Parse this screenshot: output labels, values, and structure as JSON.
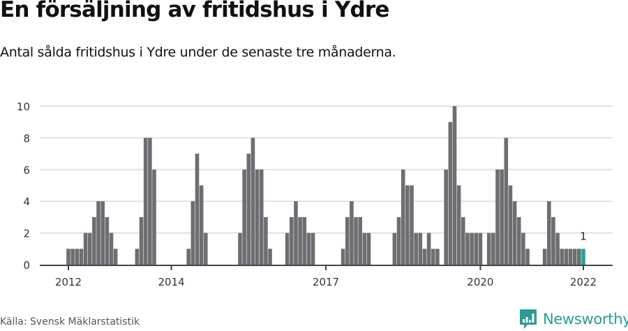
{
  "header": {
    "title": "En försäljning av fritidshus i Ydre",
    "subtitle": "Antal sålda fritidshus i Ydre under de senaste tre månaderna."
  },
  "footer": {
    "source": "Källa: Svensk Mäklarstatistik",
    "brand": "Newsworthy",
    "brand_icon": "bar-chart-speech-bubble-icon"
  },
  "colors": {
    "bar": "#6e6d72",
    "highlight": "#1aa89a",
    "grid": "#e1e1e1",
    "axis": "#444444",
    "brand": "#2a9d8f"
  },
  "chart_data": {
    "type": "bar",
    "title": "En försäljning av fritidshus i Ydre",
    "subtitle": "Antal sålda fritidshus i Ydre under de senaste tre månaderna.",
    "xlabel": "",
    "ylabel": "",
    "ylim": [
      0,
      10
    ],
    "yticks": [
      0,
      2,
      4,
      6,
      8,
      10
    ],
    "xticks": [
      "2012",
      "2014",
      "2017",
      "2020",
      "2022"
    ],
    "grid": true,
    "legend": "none",
    "start": "2012-01",
    "frequency": "monthly",
    "highlight_last": true,
    "annotation": {
      "x": "2022-01",
      "text": "1"
    },
    "categories": [
      "2012-01",
      "2012-02",
      "2012-03",
      "2012-04",
      "2012-05",
      "2012-06",
      "2012-07",
      "2012-08",
      "2012-09",
      "2012-10",
      "2012-11",
      "2012-12",
      "2013-01",
      "2013-02",
      "2013-03",
      "2013-04",
      "2013-05",
      "2013-06",
      "2013-07",
      "2013-08",
      "2013-09",
      "2013-10",
      "2013-11",
      "2013-12",
      "2014-01",
      "2014-02",
      "2014-03",
      "2014-04",
      "2014-05",
      "2014-06",
      "2014-07",
      "2014-08",
      "2014-09",
      "2014-10",
      "2014-11",
      "2014-12",
      "2015-01",
      "2015-02",
      "2015-03",
      "2015-04",
      "2015-05",
      "2015-06",
      "2015-07",
      "2015-08",
      "2015-09",
      "2015-10",
      "2015-11",
      "2015-12",
      "2016-01",
      "2016-02",
      "2016-03",
      "2016-04",
      "2016-05",
      "2016-06",
      "2016-07",
      "2016-08",
      "2016-09",
      "2016-10",
      "2016-11",
      "2016-12",
      "2017-01",
      "2017-02",
      "2017-03",
      "2017-04",
      "2017-05",
      "2017-06",
      "2017-07",
      "2017-08",
      "2017-09",
      "2017-10",
      "2017-11",
      "2017-12",
      "2018-01",
      "2018-02",
      "2018-03",
      "2018-04",
      "2018-05",
      "2018-06",
      "2018-07",
      "2018-08",
      "2018-09",
      "2018-10",
      "2018-11",
      "2018-12",
      "2019-01",
      "2019-02",
      "2019-03",
      "2019-04",
      "2019-05",
      "2019-06",
      "2019-07",
      "2019-08",
      "2019-09",
      "2019-10",
      "2019-11",
      "2019-12",
      "2020-01",
      "2020-02",
      "2020-03",
      "2020-04",
      "2020-05",
      "2020-06",
      "2020-07",
      "2020-08",
      "2020-09",
      "2020-10",
      "2020-11",
      "2020-12",
      "2021-01",
      "2021-02",
      "2021-03",
      "2021-04",
      "2021-05",
      "2021-06",
      "2021-07",
      "2021-08",
      "2021-09",
      "2021-10",
      "2021-11",
      "2021-12",
      "2022-01"
    ],
    "values": [
      1,
      1,
      1,
      1,
      2,
      2,
      3,
      4,
      4,
      3,
      2,
      1,
      0,
      0,
      0,
      0,
      1,
      3,
      8,
      8,
      6,
      0,
      0,
      0,
      0,
      0,
      0,
      0,
      1,
      4,
      7,
      5,
      2,
      0,
      0,
      0,
      0,
      0,
      0,
      0,
      2,
      6,
      7,
      8,
      6,
      6,
      3,
      1,
      0,
      0,
      0,
      2,
      3,
      4,
      3,
      3,
      2,
      2,
      0,
      0,
      0,
      0,
      0,
      0,
      1,
      3,
      4,
      3,
      3,
      2,
      2,
      0,
      0,
      0,
      0,
      0,
      2,
      3,
      6,
      5,
      5,
      2,
      2,
      1,
      2,
      1,
      1,
      0,
      6,
      9,
      10,
      5,
      3,
      2,
      2,
      2,
      2,
      0,
      2,
      2,
      6,
      6,
      8,
      5,
      4,
      3,
      2,
      1,
      0,
      0,
      0,
      1,
      4,
      3,
      2,
      1,
      1,
      1,
      1,
      1,
      1
    ]
  }
}
